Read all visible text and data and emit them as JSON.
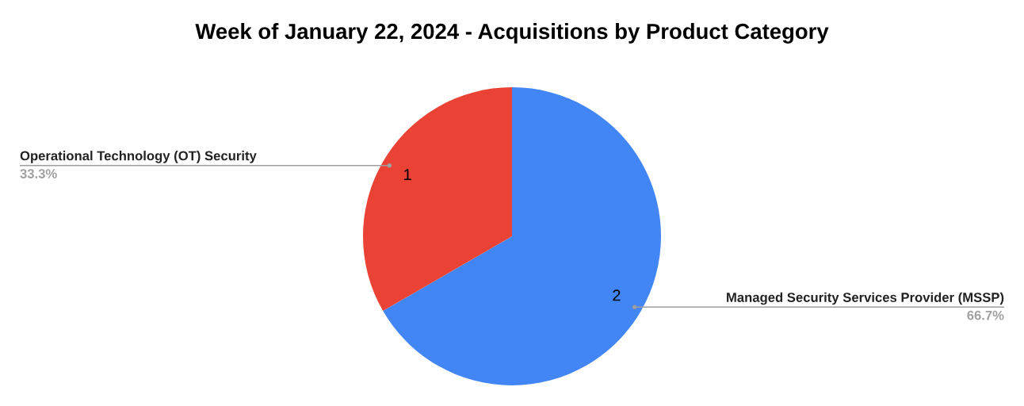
{
  "chart_data": {
    "type": "pie",
    "title": "Week of January 22, 2024 - Acquisitions by Product Category",
    "categories": [
      "Managed Security Services Provider (MSSP)",
      "Operational Technology (OT) Security"
    ],
    "values": [
      2,
      1
    ],
    "colors": [
      "#4285f4",
      "#ea4335"
    ],
    "data_labels": true,
    "annotations": [
      {
        "text": "66.7%",
        "x": "Managed Security Services Provider (MSSP)"
      },
      {
        "text": "33.3%",
        "x": "Operational Technology (OT) Security"
      }
    ]
  }
}
